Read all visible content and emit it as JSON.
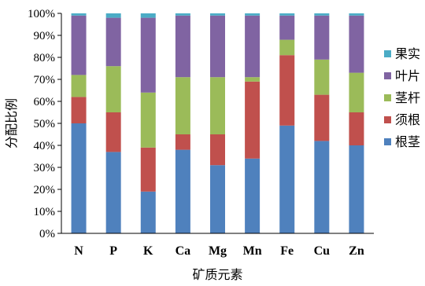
{
  "chart_data": {
    "type": "bar",
    "stacked": true,
    "percent": true,
    "categories": [
      "N",
      "P",
      "K",
      "Ca",
      "Mg",
      "Mn",
      "Fe",
      "Cu",
      "Zn"
    ],
    "series": [
      {
        "name": "根茎",
        "color": "#4f81bd",
        "values": [
          50,
          37,
          19,
          38,
          31,
          34,
          49,
          42,
          40
        ]
      },
      {
        "name": "须根",
        "color": "#c0504d",
        "values": [
          12,
          18,
          20,
          7,
          14,
          35,
          32,
          21,
          15
        ]
      },
      {
        "name": "茎杆",
        "color": "#9bbb59",
        "values": [
          10,
          21,
          25,
          26,
          26,
          2,
          7,
          16,
          18
        ]
      },
      {
        "name": "叶片",
        "color": "#8064a2",
        "values": [
          27,
          22,
          34,
          28,
          28,
          28,
          11,
          20,
          26
        ]
      },
      {
        "name": "果实",
        "color": "#4bacc6",
        "values": [
          1,
          2,
          2,
          1,
          1,
          1,
          1,
          1,
          1
        ]
      }
    ],
    "xlabel": "矿质元素",
    "ylabel": "分配比例",
    "ylim": [
      0,
      100
    ],
    "yticks": [
      "0%",
      "10%",
      "20%",
      "30%",
      "40%",
      "50%",
      "60%",
      "70%",
      "80%",
      "90%",
      "100%"
    ],
    "grid": false,
    "legend": "right"
  }
}
